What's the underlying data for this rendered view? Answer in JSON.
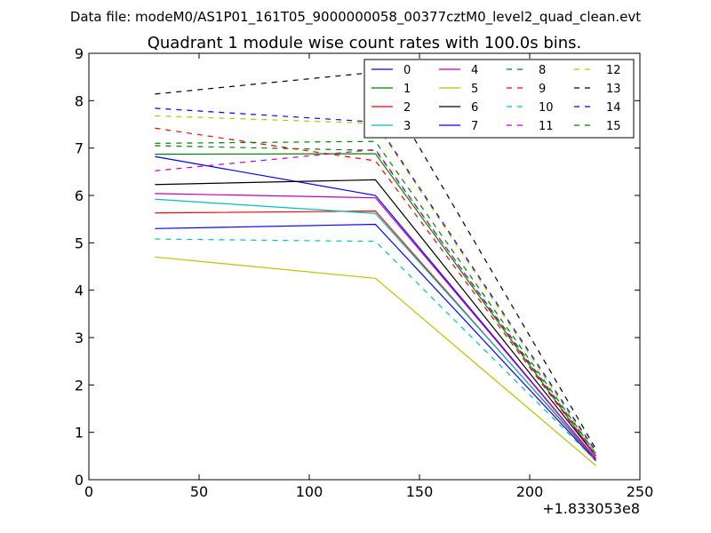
{
  "chart_data": {
    "type": "line",
    "suptitle": "Data file: modeM0/AS1P01_161T05_9000000058_00377cztM0_level2_quad_clean.evt",
    "title": "Quadrant 1 module wise count rates with 100.0s bins.",
    "xlabel": "",
    "ylabel": "",
    "xlim": [
      0,
      250
    ],
    "ylim": [
      0,
      9
    ],
    "x_ticks": [
      0,
      50,
      100,
      150,
      200,
      250
    ],
    "y_ticks": [
      0,
      1,
      2,
      3,
      4,
      5,
      6,
      7,
      8,
      9
    ],
    "x_offset_label": "+1.833053e8",
    "grid": false,
    "legend_position": "top-right",
    "legend_columns": 4,
    "x": [
      30,
      130,
      230
    ],
    "series": [
      {
        "name": "0",
        "color": "#0000ff",
        "dash": false,
        "values": [
          6.82,
          6.0,
          0.45
        ]
      },
      {
        "name": "1",
        "color": "#008000",
        "dash": false,
        "values": [
          6.87,
          6.88,
          0.5
        ]
      },
      {
        "name": "2",
        "color": "#ff0000",
        "dash": false,
        "values": [
          5.63,
          5.67,
          0.42
        ]
      },
      {
        "name": "3",
        "color": "#00bfbf",
        "dash": false,
        "values": [
          5.92,
          5.62,
          0.45
        ]
      },
      {
        "name": "4",
        "color": "#bf00bf",
        "dash": false,
        "values": [
          6.04,
          5.95,
          0.45
        ]
      },
      {
        "name": "5",
        "color": "#bfbf00",
        "dash": false,
        "values": [
          4.7,
          4.25,
          0.3
        ]
      },
      {
        "name": "6",
        "color": "#000000",
        "dash": false,
        "values": [
          6.23,
          6.33,
          0.5
        ]
      },
      {
        "name": "7",
        "color": "#0000ff",
        "dash": false,
        "values": [
          5.3,
          5.39,
          0.4
        ]
      },
      {
        "name": "8",
        "color": "#008000",
        "dash": true,
        "values": [
          7.05,
          6.95,
          0.55
        ]
      },
      {
        "name": "9",
        "color": "#ff0000",
        "dash": true,
        "values": [
          7.42,
          6.73,
          0.5
        ]
      },
      {
        "name": "10",
        "color": "#00bfbf",
        "dash": true,
        "values": [
          5.08,
          5.03,
          0.4
        ]
      },
      {
        "name": "11",
        "color": "#bf00bf",
        "dash": true,
        "values": [
          6.52,
          6.97,
          0.5
        ]
      },
      {
        "name": "12",
        "color": "#bfbf00",
        "dash": true,
        "values": [
          7.68,
          7.52,
          0.55
        ]
      },
      {
        "name": "13",
        "color": "#000000",
        "dash": true,
        "values": [
          8.14,
          8.6,
          0.65
        ]
      },
      {
        "name": "14",
        "color": "#0000ff",
        "dash": true,
        "values": [
          7.84,
          7.55,
          0.6
        ]
      },
      {
        "name": "15",
        "color": "#008000",
        "dash": true,
        "values": [
          7.1,
          7.14,
          0.55
        ]
      }
    ]
  }
}
